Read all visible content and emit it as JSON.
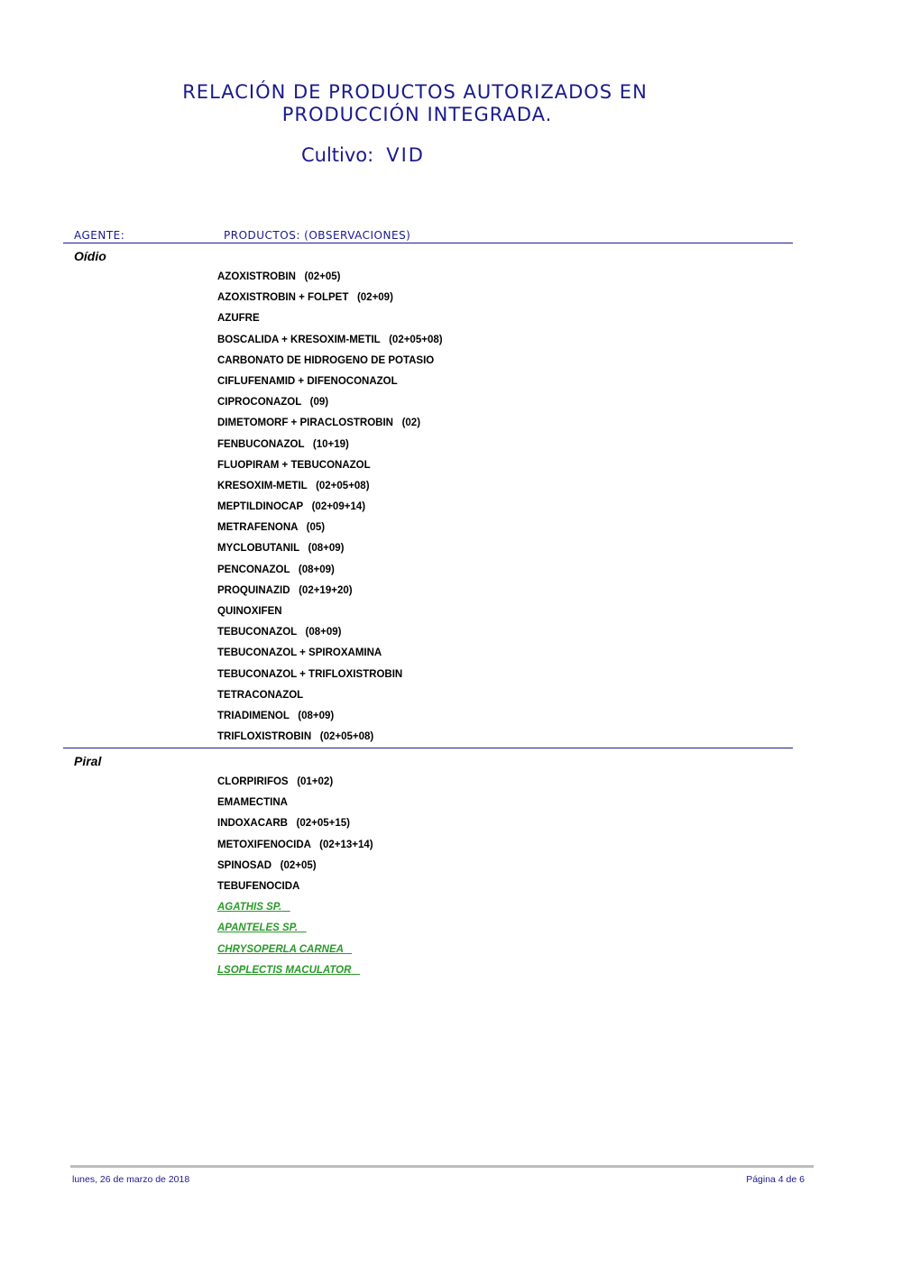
{
  "header": {
    "title_line1": "RELACIÓN DE PRODUCTOS AUTORIZADOS EN",
    "title_line2": "PRODUCCIÓN INTEGRADA.",
    "cultivo_label": "Cultivo:",
    "cultivo_value": "VID"
  },
  "columns": {
    "agente": "AGENTE:",
    "productos": "PRODUCTOS:  (OBSERVACIONES)"
  },
  "sections": [
    {
      "agent": "Oídio",
      "products": [
        {
          "name": "AZOXISTROBIN",
          "obs": "(02+05)"
        },
        {
          "name": "AZOXISTROBIN + FOLPET",
          "obs": "(02+09)"
        },
        {
          "name": "AZUFRE",
          "obs": ""
        },
        {
          "name": "BOSCALIDA + KRESOXIM-METIL",
          "obs": "(02+05+08)"
        },
        {
          "name": "CARBONATO DE HIDROGENO DE POTASIO",
          "obs": ""
        },
        {
          "name": "CIFLUFENAMID + DIFENOCONAZOL",
          "obs": ""
        },
        {
          "name": "CIPROCONAZOL",
          "obs": "(09)"
        },
        {
          "name": "DIMETOMORF + PIRACLOSTROBIN",
          "obs": "(02)"
        },
        {
          "name": "FENBUCONAZOL",
          "obs": "(10+19)"
        },
        {
          "name": "FLUOPIRAM + TEBUCONAZOL",
          "obs": ""
        },
        {
          "name": "KRESOXIM-METIL",
          "obs": "(02+05+08)"
        },
        {
          "name": "MEPTILDINOCAP",
          "obs": "(02+09+14)"
        },
        {
          "name": "METRAFENONA",
          "obs": "(05)"
        },
        {
          "name": "MYCLOBUTANIL",
          "obs": "(08+09)"
        },
        {
          "name": "PENCONAZOL",
          "obs": "(08+09)"
        },
        {
          "name": "PROQUINAZID",
          "obs": "(02+19+20)"
        },
        {
          "name": "QUINOXIFEN",
          "obs": ""
        },
        {
          "name": "TEBUCONAZOL",
          "obs": "(08+09)"
        },
        {
          "name": "TEBUCONAZOL + SPIROXAMINA",
          "obs": ""
        },
        {
          "name": "TEBUCONAZOL + TRIFLOXISTROBIN",
          "obs": ""
        },
        {
          "name": "TETRACONAZOL",
          "obs": ""
        },
        {
          "name": "TRIADIMENOL",
          "obs": "(08+09)"
        },
        {
          "name": "TRIFLOXISTROBIN",
          "obs": "(02+05+08)"
        }
      ]
    },
    {
      "agent": "Piral",
      "products": [
        {
          "name": "CLORPIRIFOS",
          "obs": "(01+02)"
        },
        {
          "name": "EMAMECTINA",
          "obs": ""
        },
        {
          "name": "INDOXACARB",
          "obs": "(02+05+15)"
        },
        {
          "name": "METOXIFENOCIDA",
          "obs": "(02+13+14)"
        },
        {
          "name": "SPINOSAD",
          "obs": "(02+05)"
        },
        {
          "name": "TEBUFENOCIDA",
          "obs": ""
        },
        {
          "name": "AGATHIS SP.",
          "obs": "",
          "bio": true
        },
        {
          "name": "APANTELES SP.",
          "obs": "",
          "bio": true
        },
        {
          "name": "CHRYSOPERLA CARNEA",
          "obs": "",
          "bio": true
        },
        {
          "name": "LSOPLECTIS MACULATOR",
          "obs": "",
          "bio": true
        }
      ]
    }
  ],
  "footer": {
    "date": "lunes, 26 de marzo de 2018",
    "page": "Página 4 de 6"
  },
  "colors": {
    "heading_blue": "#1a1a8c",
    "biological_green": "#2a9a2a"
  }
}
